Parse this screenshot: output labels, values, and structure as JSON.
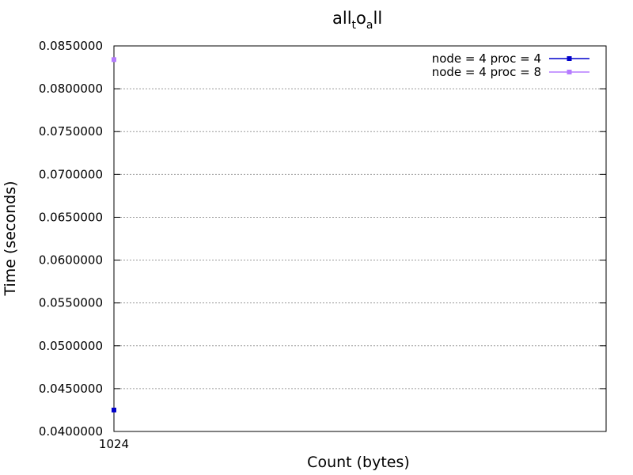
{
  "chart_data": {
    "type": "line",
    "title": {
      "main": "all",
      "sub1": "t",
      "mid": "o",
      "sub2": "a",
      "end": "ll"
    },
    "xlabel": "Count (bytes)",
    "ylabel": "Time (seconds)",
    "x_ticks": [
      "1024"
    ],
    "y_ticks": [
      "0.0400000",
      "0.0450000",
      "0.0500000",
      "0.0550000",
      "0.0600000",
      "0.0650000",
      "0.0700000",
      "0.0750000",
      "0.0800000",
      "0.0850000"
    ],
    "ylim": [
      0.04,
      0.085
    ],
    "grid": true,
    "legend_position": "top-right",
    "series": [
      {
        "name": "node = 4 proc = 4",
        "color": "#0000cc",
        "x": [
          1024
        ],
        "y": [
          0.0425
        ]
      },
      {
        "name": "node = 4 proc = 8",
        "color": "#b57bff",
        "x": [
          1024
        ],
        "y": [
          0.0834
        ]
      }
    ]
  }
}
